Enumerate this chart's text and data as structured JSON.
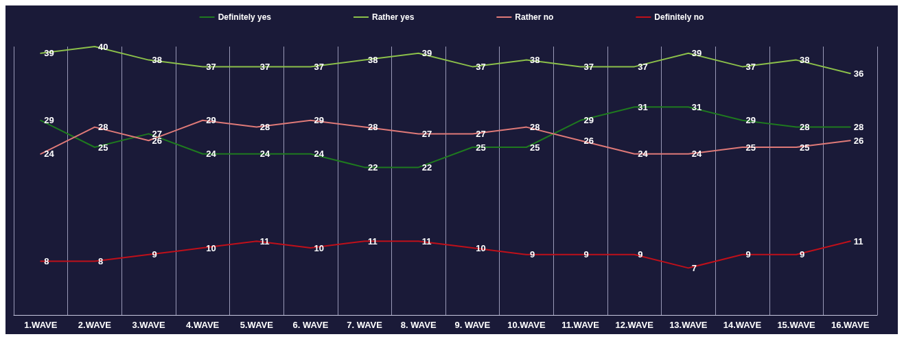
{
  "chart_data": {
    "type": "line",
    "categories": [
      "1.WAVE",
      "2.WAVE",
      "3.WAVE",
      "4.WAVE",
      "5.WAVE",
      "6. WAVE",
      "7. WAVE",
      "8. WAVE",
      "9. WAVE",
      "10.WAVE",
      "11.WAVE",
      "12.WAVE",
      "13.WAVE",
      "14.WAVE",
      "15.WAVE",
      "16.WAVE"
    ],
    "series": [
      {
        "name": "Definitely yes",
        "color": "#1f7a1f",
        "values": [
          29,
          25,
          27,
          24,
          24,
          24,
          22,
          22,
          25,
          25,
          29,
          31,
          31,
          29,
          28,
          28
        ]
      },
      {
        "name": "Rather yes",
        "color": "#8cc04a",
        "values": [
          39,
          40,
          38,
          37,
          37,
          37,
          38,
          39,
          37,
          38,
          37,
          37,
          39,
          37,
          38,
          36
        ]
      },
      {
        "name": "Rather no",
        "color": "#e07a78",
        "values": [
          24,
          28,
          26,
          29,
          28,
          29,
          28,
          27,
          27,
          28,
          26,
          24,
          24,
          25,
          25,
          26
        ]
      },
      {
        "name": "Definitely no",
        "color": "#c0101a",
        "values": [
          8,
          8,
          9,
          10,
          11,
          10,
          11,
          11,
          10,
          9,
          9,
          9,
          7,
          9,
          9,
          11
        ]
      }
    ],
    "data_labels": true,
    "grid": "x",
    "legend": "top",
    "marker": "none",
    "line_style": "solid"
  }
}
